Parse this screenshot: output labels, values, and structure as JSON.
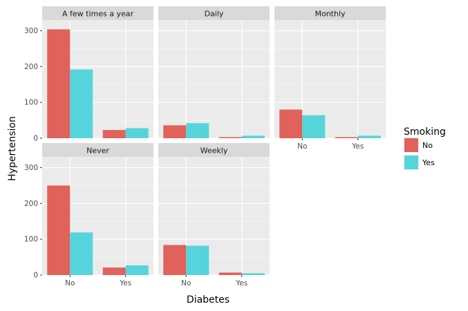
{
  "chart_data": {
    "type": "bar",
    "position": "dodge",
    "xlabel": "Diabetes",
    "ylabel": "Hypertension",
    "categories": [
      "No",
      "Yes"
    ],
    "ylim": [
      0,
      330
    ],
    "yticks": [
      0,
      100,
      200,
      300
    ],
    "grid": true,
    "legend": {
      "title": "Smoking",
      "placement": "right",
      "entries": [
        {
          "name": "No",
          "color": "#e0625a"
        },
        {
          "name": "Yes",
          "color": "#56d4dc"
        }
      ]
    },
    "facets": [
      {
        "label": "A few times a year",
        "series": [
          {
            "name": "No",
            "values": [
              304,
              23
            ]
          },
          {
            "name": "Yes",
            "values": [
              192,
              28
            ]
          }
        ]
      },
      {
        "label": "Daily",
        "series": [
          {
            "name": "No",
            "values": [
              36,
              3
            ]
          },
          {
            "name": "Yes",
            "values": [
              42,
              7
            ]
          }
        ]
      },
      {
        "label": "Monthly",
        "series": [
          {
            "name": "No",
            "values": [
              80,
              3
            ]
          },
          {
            "name": "Yes",
            "values": [
              64,
              7
            ]
          }
        ]
      },
      {
        "label": "Never",
        "series": [
          {
            "name": "No",
            "values": [
              250,
              21
            ]
          },
          {
            "name": "Yes",
            "values": [
              119,
              27
            ]
          }
        ]
      },
      {
        "label": "Weekly",
        "series": [
          {
            "name": "No",
            "values": [
              84,
              7
            ]
          },
          {
            "name": "Yes",
            "values": [
              82,
              5
            ]
          }
        ]
      }
    ]
  }
}
